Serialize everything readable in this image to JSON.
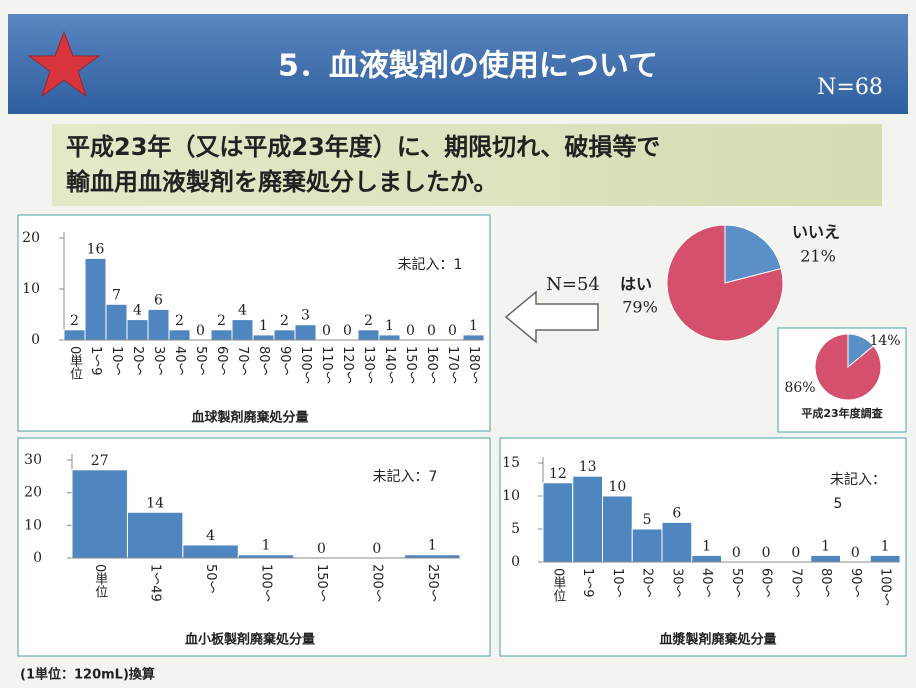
{
  "header": {
    "title": "5．血液製剤の使用について",
    "n": "N=68"
  },
  "question": [
    "平成23年（又は平成23年度）に、期限切れ、破損等で",
    "輸血用血液製剤を廃棄処分しましたか。"
  ],
  "footnote": "(1単位：120mL)換算",
  "chart_data": [
    {
      "type": "bar",
      "x_label": "血球製剤廃棄処分量",
      "annotations": [
        "未記入：1"
      ],
      "color": "#4f86c0",
      "categories": [
        "0単位",
        "1～9",
        "10～",
        "20～",
        "30～",
        "40～",
        "50～",
        "60～",
        "70～",
        "80～",
        "90～",
        "100～",
        "110～",
        "120～",
        "130～",
        "140～",
        "150～",
        "160～",
        "170～",
        "180～"
      ],
      "values": [
        2,
        16,
        7,
        4,
        6,
        2,
        0,
        2,
        4,
        1,
        2,
        3,
        0,
        0,
        2,
        1,
        0,
        0,
        0,
        1
      ],
      "ylim": [
        0,
        20
      ],
      "yticks": [
        0,
        10,
        20
      ]
    },
    {
      "type": "pie",
      "annotations": [
        "N=54"
      ],
      "categories": [
        "いいえ",
        "はい"
      ],
      "values": [
        21,
        79
      ],
      "value_labels": [
        "21%",
        "79%"
      ],
      "colors": [
        "#5b8fc7",
        "#d4506c"
      ]
    },
    {
      "type": "pie",
      "title": "平成23年度調査",
      "values": [
        14,
        86
      ],
      "value_labels": [
        "14%",
        "86%"
      ],
      "colors": [
        "#5b8fc7",
        "#d4506c"
      ]
    },
    {
      "type": "bar",
      "x_label": "血小板製剤廃棄処分量",
      "annotations": [
        "未記入：7"
      ],
      "color": "#4f86c0",
      "categories": [
        "0単位",
        "1～49",
        "50～",
        "100～",
        "150～",
        "200～",
        "250～"
      ],
      "values": [
        27,
        14,
        4,
        1,
        0,
        0,
        1
      ],
      "ylim": [
        0,
        30
      ],
      "yticks": [
        0,
        10,
        20,
        30
      ]
    },
    {
      "type": "bar",
      "x_label": "血漿製剤廃棄処分量",
      "annotations": [
        "未記入：",
        "5"
      ],
      "color": "#4f86c0",
      "categories": [
        "0単位",
        "1～9",
        "10～",
        "20～",
        "30～",
        "40～",
        "50～",
        "60～",
        "70～",
        "80～",
        "90～",
        "100～"
      ],
      "values": [
        12,
        13,
        10,
        5,
        6,
        1,
        0,
        0,
        0,
        1,
        0,
        1
      ],
      "ylim": [
        0,
        15
      ],
      "yticks": [
        0,
        5,
        10,
        15
      ]
    }
  ]
}
